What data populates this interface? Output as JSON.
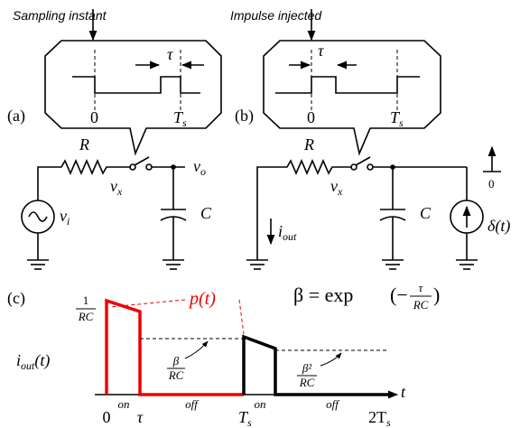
{
  "caption_a": "Sampling instant",
  "caption_b": "Impulse injected",
  "panel_a": {
    "label": "(a)",
    "tau": "τ",
    "zero": "0",
    "ts": {
      "base": "T",
      "sub": "s"
    },
    "R": "R",
    "vx": {
      "base": "v",
      "sub": "x"
    },
    "vo": {
      "base": "v",
      "sub": "o"
    },
    "vi": {
      "base": "v",
      "sub": "i"
    },
    "C": "C"
  },
  "panel_b": {
    "label": "(b)",
    "tau": "τ",
    "zero": "0",
    "ts": {
      "base": "T",
      "sub": "s"
    },
    "R": "R",
    "vx": {
      "base": "v",
      "sub": "x"
    },
    "iout": {
      "base": "i",
      "sub": "out"
    },
    "C": "C",
    "delta": "δ(t)",
    "impulse_zero": "0"
  },
  "formula": {
    "lhs": "β = exp",
    "open": "(−",
    "num": "τ",
    "den": "RC",
    "close": ")"
  },
  "panel_c": {
    "label": "(c)",
    "pt": "p(t)",
    "peak": {
      "num": "1",
      "den": "RC"
    },
    "ylabel": {
      "base": "i",
      "sub": "out",
      "tail": "(t)"
    },
    "beta": {
      "num": "β",
      "den": "RC"
    },
    "beta2": {
      "num": "β²",
      "den": "RC"
    },
    "on1": "on",
    "off1": "off",
    "on2": "on",
    "off2": "off",
    "t": "t",
    "x0": "0",
    "xtau": "τ",
    "xts": {
      "base": "T",
      "sub": "s"
    },
    "x2ts": {
      "base": "2T",
      "sub": "s"
    }
  }
}
